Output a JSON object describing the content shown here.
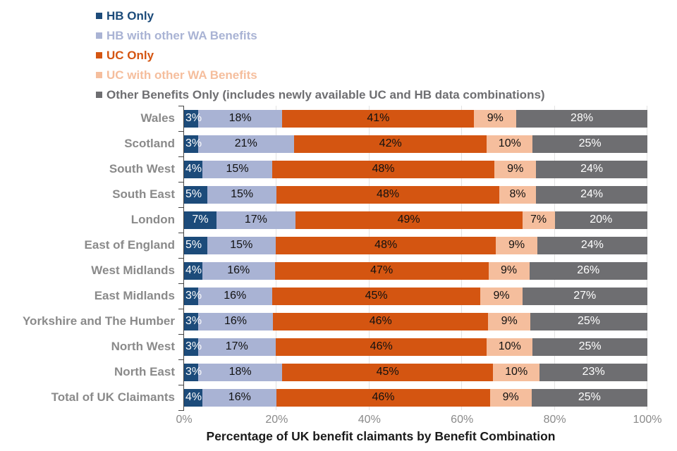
{
  "chart_data": {
    "type": "bar",
    "orientation": "horizontal-stacked",
    "xlabel": "Percentage of UK benefit claimants by Benefit Combination",
    "x_ticks": [
      "0%",
      "20%",
      "40%",
      "60%",
      "80%",
      "100%"
    ],
    "x_tick_values": [
      0,
      20,
      40,
      60,
      80,
      100
    ],
    "xlim": [
      0,
      100
    ],
    "grid": "vertical-light",
    "legend_position": "top-left",
    "categories": [
      "Wales",
      "Scotland",
      "South West",
      "South East",
      "London",
      "East of England",
      "West Midlands",
      "East Midlands",
      "Yorkshire and The Humber",
      "North West",
      "North East",
      "Total of UK Claimants"
    ],
    "series": [
      {
        "name": "HB Only",
        "color": "#1c4b7a",
        "label_color": "#ffffff",
        "values": [
          3,
          3,
          4,
          5,
          7,
          5,
          4,
          3,
          3,
          3,
          3,
          4
        ]
      },
      {
        "name": "HB with other WA Benefits",
        "color": "#a9b3d4",
        "label_color": "#111111",
        "values": [
          18,
          21,
          15,
          15,
          17,
          15,
          16,
          16,
          16,
          17,
          18,
          16
        ]
      },
      {
        "name": "UC Only",
        "color": "#d45511",
        "label_color": "#111111",
        "values": [
          41,
          42,
          48,
          48,
          49,
          48,
          47,
          45,
          46,
          46,
          45,
          46
        ]
      },
      {
        "name": "UC with other WA Benefits",
        "color": "#f5be9d",
        "label_color": "#111111",
        "values": [
          9,
          10,
          9,
          8,
          7,
          9,
          9,
          9,
          9,
          10,
          10,
          9
        ]
      },
      {
        "name": "Other Benefits Only (includes newly available UC and HB data combinations)",
        "color": "#6e6e71",
        "label_color": "#ffffff",
        "values": [
          28,
          25,
          24,
          24,
          20,
          24,
          26,
          27,
          25,
          25,
          23,
          25
        ]
      }
    ],
    "colors": {
      "axis_line": "#444444",
      "gridline": "#e3e3e3",
      "category_label": "#8a8a8a",
      "tick_label": "#8a8a8a",
      "axis_title": "#1a1a1a"
    }
  }
}
